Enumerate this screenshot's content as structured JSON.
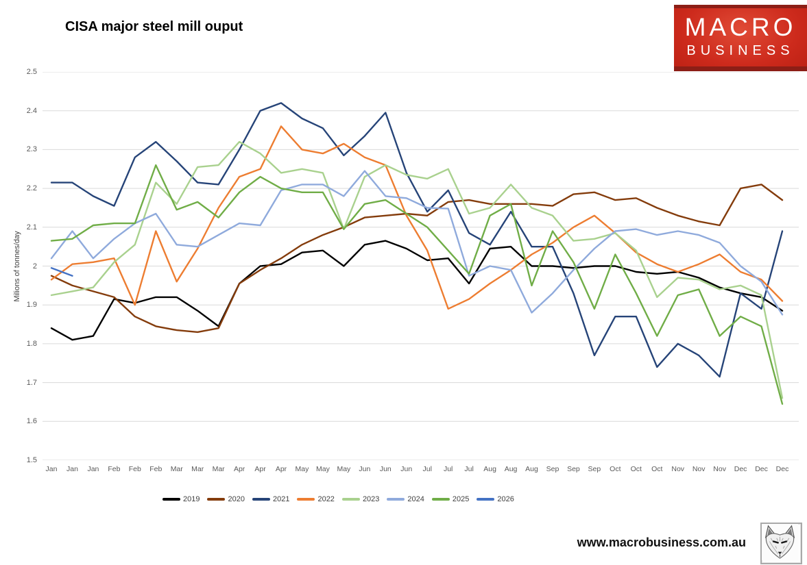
{
  "header": {
    "title": "CISA major steel mill ouput"
  },
  "logo": {
    "line1": "MACRO",
    "line2": "BUSINESS",
    "bg_color": "#cd2a1c",
    "text_color": "#ffffff"
  },
  "footer": {
    "website": "www.macrobusiness.com.au",
    "icon": "fox-sketch-icon"
  },
  "chart_data": {
    "type": "line",
    "title": "CISA major steel mill ouput",
    "xlabel": "",
    "ylabel": "Milions of tonnes/day",
    "ylim": [
      1.5,
      2.5
    ],
    "ytick_step": 0.1,
    "ytick_labels": [
      "2.5",
      "2.4",
      "2.3",
      "2.2",
      "2.1",
      "2",
      "1.9",
      "1.8",
      "1.7",
      "1.6",
      "1.5"
    ],
    "grid": true,
    "grid_color": "#d9d9d9",
    "legend_position": "bottom",
    "categories": [
      "Jan",
      "Jan",
      "Jan",
      "Feb",
      "Feb",
      "Feb",
      "Mar",
      "Mar",
      "Mar",
      "Apr",
      "Apr",
      "Apr",
      "May",
      "May",
      "May",
      "Jun",
      "Jun",
      "Jun",
      "Jul",
      "Jul",
      "Jul",
      "Aug",
      "Aug",
      "Aug",
      "Sep",
      "Sep",
      "Sep",
      "Oct",
      "Oct",
      "Oct",
      "Nov",
      "Nov",
      "Nov",
      "Dec",
      "Dec",
      "Dec"
    ],
    "series": [
      {
        "name": "2019",
        "color": "#000000",
        "values": [
          1.84,
          1.81,
          1.82,
          1.915,
          1.905,
          1.92,
          1.92,
          1.885,
          1.845,
          1.955,
          2.0,
          2.005,
          2.035,
          2.04,
          2.0,
          2.055,
          2.065,
          2.045,
          2.015,
          2.02,
          1.955,
          2.045,
          2.05,
          2.0,
          2.0,
          1.995,
          2.0,
          2.0,
          1.985,
          1.98,
          1.985,
          1.97,
          1.945,
          1.93,
          1.92,
          1.885
        ]
      },
      {
        "name": "2020",
        "color": "#843c0c",
        "values": [
          1.975,
          1.95,
          1.935,
          1.92,
          1.87,
          1.845,
          1.835,
          1.83,
          1.84,
          1.955,
          1.99,
          2.02,
          2.055,
          2.08,
          2.1,
          2.125,
          2.13,
          2.135,
          2.13,
          2.165,
          2.17,
          2.16,
          2.16,
          2.16,
          2.155,
          2.185,
          2.19,
          2.17,
          2.175,
          2.15,
          2.13,
          2.115,
          2.105,
          2.2,
          2.21,
          2.17
        ]
      },
      {
        "name": "2021",
        "color": "#264478",
        "values": [
          2.215,
          2.215,
          2.18,
          2.155,
          2.28,
          2.32,
          2.27,
          2.215,
          2.21,
          2.3,
          2.4,
          2.42,
          2.38,
          2.355,
          2.285,
          2.335,
          2.395,
          2.24,
          2.14,
          2.195,
          2.085,
          2.055,
          2.14,
          2.05,
          2.05,
          1.93,
          1.77,
          1.87,
          1.87,
          1.74,
          1.8,
          1.77,
          1.715,
          1.93,
          1.89,
          2.09
        ]
      },
      {
        "name": "2022",
        "color": "#ed7d31",
        "values": [
          1.965,
          2.005,
          2.01,
          2.02,
          1.9,
          2.09,
          1.96,
          2.045,
          2.15,
          2.23,
          2.25,
          2.36,
          2.3,
          2.29,
          2.315,
          2.28,
          2.26,
          2.13,
          2.04,
          1.89,
          1.915,
          1.955,
          1.99,
          2.03,
          2.06,
          2.1,
          2.13,
          2.085,
          2.035,
          2.005,
          1.985,
          2.005,
          2.03,
          1.985,
          1.965,
          1.91
        ]
      },
      {
        "name": "2023",
        "color": "#a9d18e",
        "values": [
          1.925,
          1.935,
          1.945,
          2.01,
          2.055,
          2.215,
          2.16,
          2.255,
          2.26,
          2.32,
          2.29,
          2.24,
          2.25,
          2.24,
          2.095,
          2.23,
          2.26,
          2.235,
          2.225,
          2.25,
          2.135,
          2.15,
          2.21,
          2.15,
          2.13,
          2.065,
          2.07,
          2.085,
          2.04,
          1.92,
          1.97,
          1.965,
          1.94,
          1.95,
          1.925,
          1.66
        ]
      },
      {
        "name": "2024",
        "color": "#8faadc",
        "values": [
          2.02,
          2.09,
          2.02,
          2.07,
          2.11,
          2.135,
          2.055,
          2.05,
          2.08,
          2.11,
          2.105,
          2.195,
          2.21,
          2.21,
          2.18,
          2.245,
          2.18,
          2.175,
          2.15,
          2.148,
          1.975,
          2.0,
          1.99,
          1.88,
          1.93,
          1.99,
          2.045,
          2.09,
          2.095,
          2.08,
          2.09,
          2.08,
          2.06,
          2.0,
          1.96,
          1.875
        ]
      },
      {
        "name": "2025",
        "color": "#70ad47",
        "values": [
          2.065,
          2.07,
          2.105,
          2.11,
          2.11,
          2.26,
          2.145,
          2.165,
          2.125,
          2.19,
          2.23,
          2.2,
          2.19,
          2.19,
          2.095,
          2.16,
          2.17,
          2.135,
          2.1,
          2.04,
          1.98,
          2.13,
          2.16,
          1.95,
          2.09,
          2.01,
          1.89,
          2.03,
          1.93,
          1.82,
          1.925,
          1.94,
          1.82,
          1.87,
          1.845,
          1.645
        ]
      },
      {
        "name": "2026",
        "color": "#4472c4",
        "values": [
          1.995,
          1.975,
          null,
          null,
          null,
          null,
          null,
          null,
          null,
          null,
          null,
          null,
          null,
          null,
          null,
          null,
          null,
          null,
          null,
          null,
          null,
          null,
          null,
          null,
          null,
          null,
          null,
          null,
          null,
          null,
          null,
          null,
          null,
          null,
          null,
          null
        ]
      }
    ]
  }
}
